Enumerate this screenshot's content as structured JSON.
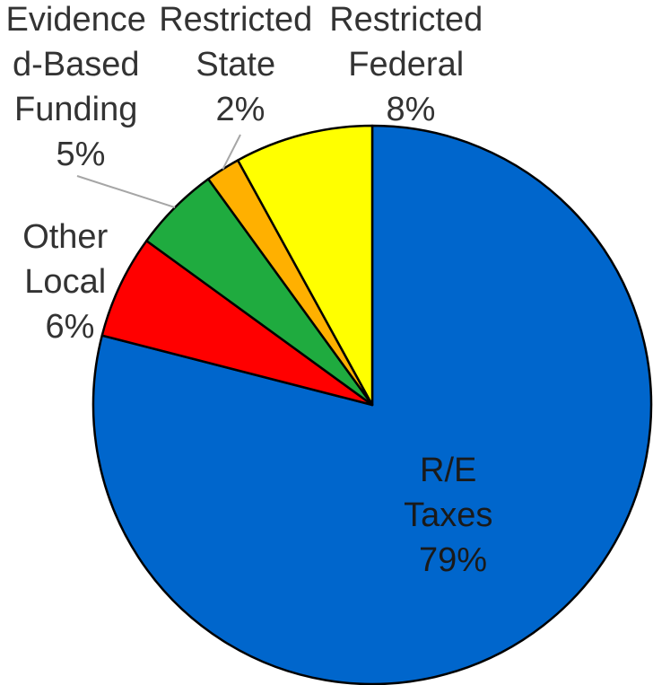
{
  "chart_data": {
    "type": "pie",
    "title": "",
    "slices": [
      {
        "name": "R/E Taxes",
        "label_lines": [
          "R/E",
          "Taxes"
        ],
        "value": 79,
        "value_label": "79%",
        "color": "#0066cc"
      },
      {
        "name": "Other Local",
        "label_lines": [
          "Other",
          "Local"
        ],
        "value": 6,
        "value_label": "6%",
        "color": "#ff0000"
      },
      {
        "name": "Evidence-Based Funding",
        "label_lines": [
          "Evidence",
          "d-Based",
          "Funding"
        ],
        "value": 5,
        "value_label": "5%",
        "color": "#1fab3f"
      },
      {
        "name": "Restricted State",
        "label_lines": [
          "Restricted",
          "State"
        ],
        "value": 2,
        "value_label": "2%",
        "color": "#ffb000"
      },
      {
        "name": "Restricted Federal",
        "label_lines": [
          "Restricted",
          "Federal"
        ],
        "value": 8,
        "value_label": "8%",
        "color": "#ffff00"
      }
    ],
    "start_angle_deg": 0,
    "direction": "clockwise",
    "legend": "none"
  }
}
